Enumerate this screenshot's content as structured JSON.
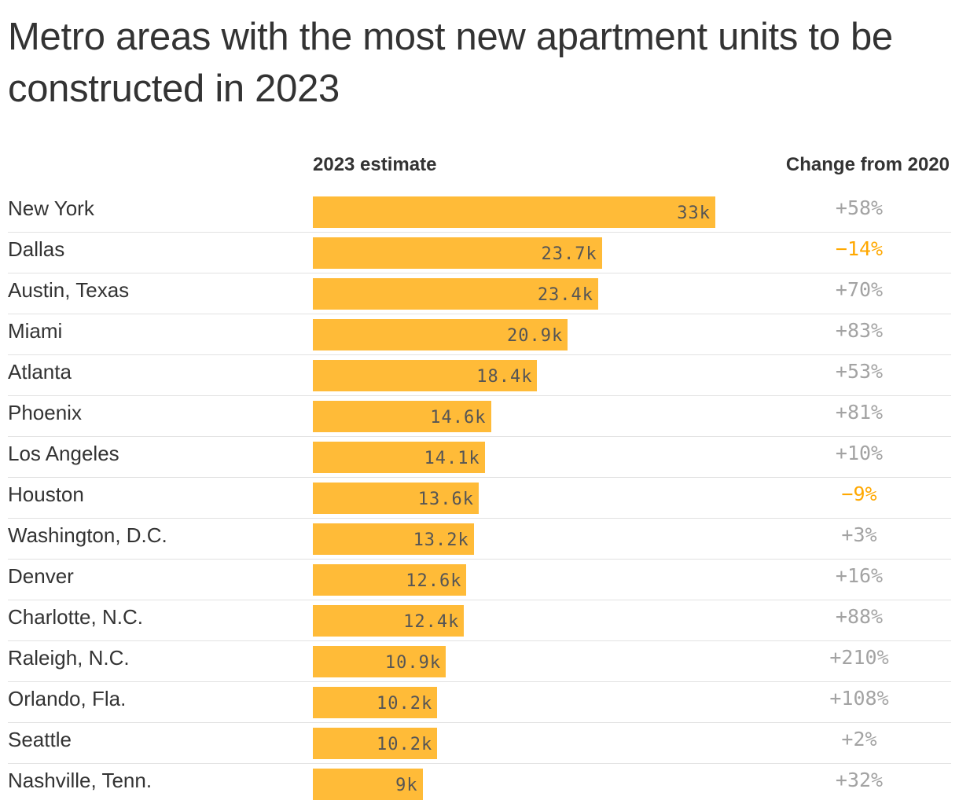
{
  "title": "Metro areas with the most new apartment units to be constructed in 2023",
  "columns": {
    "estimate": "2023 estimate",
    "change": "Change from 2020"
  },
  "colors": {
    "bar": "#ffbb38",
    "negative_change": "#ffa800",
    "positive_change": "#a3a3a3"
  },
  "chart_data": {
    "type": "bar",
    "orientation": "horizontal",
    "title": "Metro areas with the most new apartment units to be constructed in 2023",
    "categories": [
      "New York",
      "Dallas",
      "Austin, Texas",
      "Miami",
      "Atlanta",
      "Phoenix",
      "Los Angeles",
      "Houston",
      "Washington, D.C.",
      "Denver",
      "Charlotte, N.C.",
      "Raleigh, N.C.",
      "Orlando, Fla.",
      "Seattle",
      "Nashville, Tenn."
    ],
    "values": [
      33,
      23.7,
      23.4,
      20.9,
      18.4,
      14.6,
      14.1,
      13.6,
      13.2,
      12.6,
      12.4,
      10.9,
      10.2,
      10.2,
      9
    ],
    "value_labels": [
      "33k",
      "23.7k",
      "23.4k",
      "20.9k",
      "18.4k",
      "14.6k",
      "14.1k",
      "13.6k",
      "13.2k",
      "12.6k",
      "12.4k",
      "10.9k",
      "10.2k",
      "10.2k",
      "9k"
    ],
    "change_labels": [
      "+58%",
      "−14%",
      "+70%",
      "+83%",
      "+53%",
      "+81%",
      "+10%",
      "−9%",
      "+3%",
      "+16%",
      "+88%",
      "+210%",
      "+108%",
      "+2%",
      "+32%"
    ],
    "change_values": [
      58,
      -14,
      70,
      83,
      53,
      81,
      10,
      -9,
      3,
      16,
      88,
      210,
      108,
      2,
      32
    ],
    "xlim": [
      0,
      33
    ]
  }
}
